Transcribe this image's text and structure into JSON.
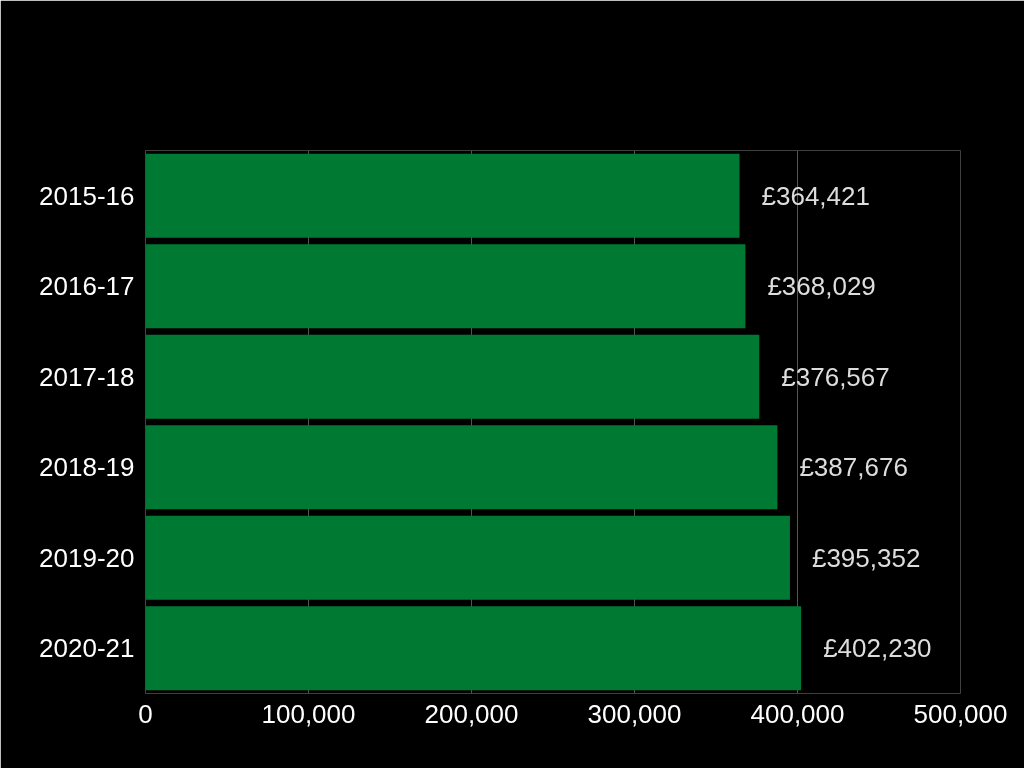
{
  "chart_data": {
    "type": "bar",
    "orientation": "horizontal",
    "categories": [
      "2015-16",
      "2016-17",
      "2017-18",
      "2018-19",
      "2019-20",
      "2020-21"
    ],
    "values": [
      364421,
      368029,
      376567,
      387676,
      395352,
      402230
    ],
    "value_labels": [
      "£364,421",
      "£368,029",
      "£376,567",
      "£387,676",
      "£395,352",
      "£402,230"
    ],
    "color": "#007a33",
    "xlim": [
      0,
      500000
    ],
    "xticks": [
      0,
      {
        "value": 100000,
        "label": "100,000"
      },
      {
        "value": 200000,
        "label": "200,000"
      },
      {
        "value": 300000,
        "label": "300,000"
      },
      {
        "value": 400000,
        "label": "400,000"
      },
      {
        "value": 500000,
        "label": "500,000"
      }
    ],
    "grid": "x"
  }
}
